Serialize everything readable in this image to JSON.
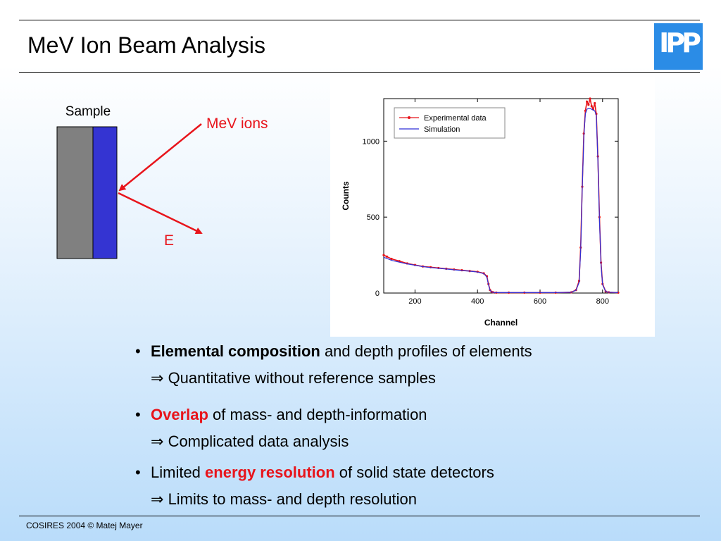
{
  "title": "MeV Ion Beam Analysis",
  "logo_text": "IPP",
  "diagram": {
    "sample_label": "Sample",
    "ions_label": "MeV ions",
    "energy_label": "E"
  },
  "chart_data": {
    "type": "line",
    "xlabel": "Channel",
    "ylabel": "Counts",
    "xlim": [
      100,
      850
    ],
    "ylim": [
      0,
      1280
    ],
    "xticks": [
      200,
      400,
      600,
      800
    ],
    "yticks": [
      0,
      500,
      1000
    ],
    "legend_position": "top-left",
    "series": [
      {
        "name": "Experimental data",
        "color": "#e8141b",
        "marker": "dot",
        "x": [
          100,
          110,
          125,
          150,
          175,
          200,
          225,
          250,
          275,
          300,
          325,
          350,
          375,
          400,
          420,
          430,
          435,
          440,
          445,
          450,
          460,
          500,
          550,
          600,
          650,
          700,
          715,
          725,
          730,
          735,
          740,
          745,
          750,
          755,
          760,
          765,
          770,
          775,
          780,
          785,
          790,
          795,
          800,
          810,
          820,
          850
        ],
        "y": [
          250,
          240,
          225,
          210,
          195,
          185,
          175,
          170,
          165,
          160,
          155,
          150,
          145,
          140,
          130,
          110,
          60,
          20,
          8,
          5,
          3,
          3,
          3,
          3,
          3,
          5,
          20,
          80,
          300,
          700,
          1050,
          1200,
          1260,
          1240,
          1280,
          1230,
          1210,
          1250,
          1180,
          900,
          500,
          200,
          60,
          10,
          5,
          3
        ]
      },
      {
        "name": "Simulation",
        "color": "#2f2fd6",
        "x": [
          100,
          110,
          125,
          150,
          175,
          200,
          225,
          250,
          275,
          300,
          325,
          350,
          375,
          400,
          420,
          430,
          435,
          440,
          445,
          450,
          460,
          500,
          550,
          600,
          650,
          700,
          715,
          725,
          730,
          735,
          740,
          745,
          750,
          755,
          760,
          765,
          770,
          775,
          780,
          785,
          790,
          795,
          800,
          810,
          820,
          850
        ],
        "y": [
          235,
          228,
          215,
          203,
          192,
          183,
          174,
          168,
          163,
          158,
          153,
          148,
          144,
          138,
          128,
          105,
          55,
          18,
          7,
          4,
          3,
          3,
          3,
          3,
          3,
          5,
          18,
          70,
          280,
          680,
          1030,
          1180,
          1210,
          1215,
          1215,
          1210,
          1205,
          1200,
          1170,
          880,
          480,
          190,
          55,
          10,
          5,
          3
        ]
      }
    ]
  },
  "bullets": [
    {
      "bold_text": "Elemental composition",
      "rest_text": " and depth profiles of elements",
      "implication": "Quantitative without reference samples"
    },
    {
      "bold_text": "Overlap",
      "rest_text": " of mass- and depth-information",
      "implication": "Complicated data analysis"
    },
    {
      "pre_text": "Limited ",
      "bold_text": "energy resolution",
      "rest_text": " of solid state detectors",
      "implication": "Limits to mass- and depth resolution"
    }
  ],
  "implies_symbol": "⇒",
  "bullet_symbol": "•",
  "footer": "COSIRES 2004 © Matej Mayer"
}
